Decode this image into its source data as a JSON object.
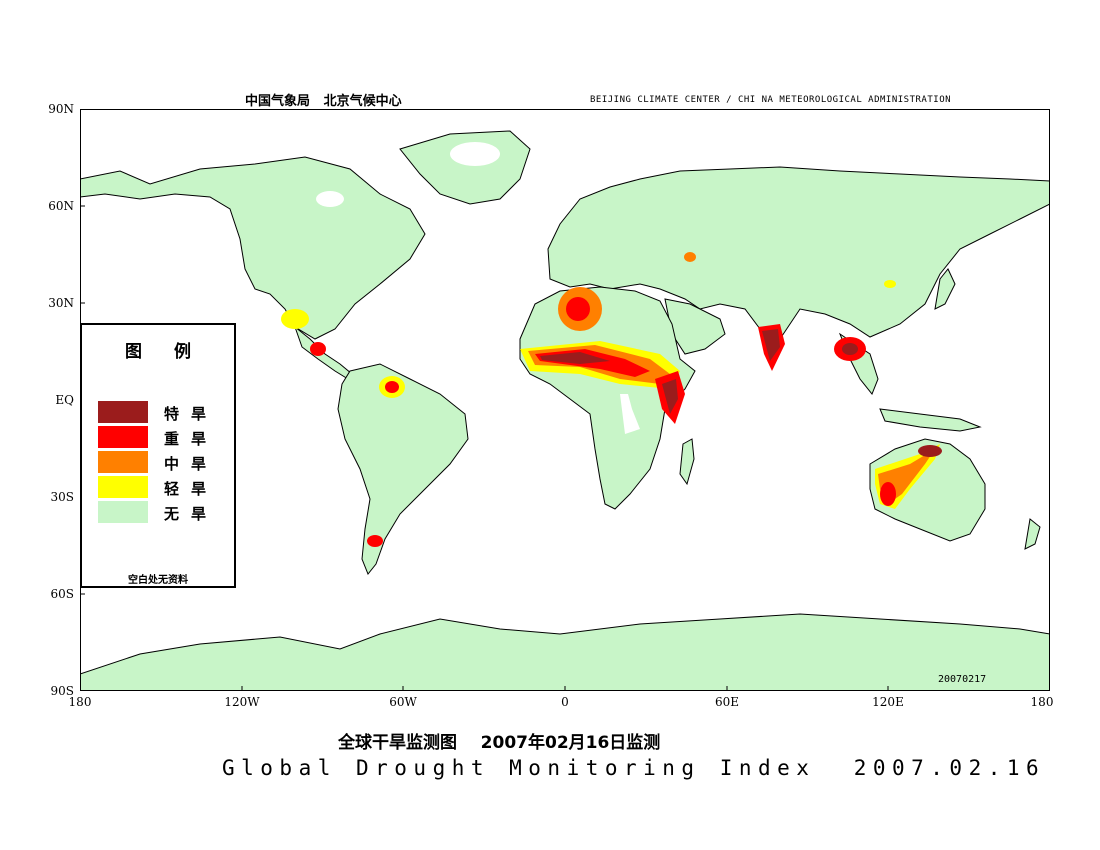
{
  "header": {
    "left": "中国气象局   北京气候中心",
    "right": "BEIJING CLIMATE CENTER / CHI NA METEOROLOGICAL ADMINISTRATION"
  },
  "axes": {
    "lat_labels": [
      "90N",
      "60N",
      "30N",
      "EQ",
      "30S",
      "60S",
      "90S"
    ],
    "lon_labels": [
      "180",
      "120W",
      "60W",
      "0",
      "60E",
      "120E",
      "180"
    ]
  },
  "legend": {
    "title": "图例",
    "items": [
      {
        "label": "特旱",
        "color": "#9b1c1c"
      },
      {
        "label": "重旱",
        "color": "#ff0000"
      },
      {
        "label": "中旱",
        "color": "#ff8000"
      },
      {
        "label": "轻旱",
        "color": "#ffff00"
      },
      {
        "label": "无旱",
        "color": "#c8f5c8"
      }
    ],
    "note": "空白处无资料"
  },
  "stamp": "20070217",
  "title_cn": "全球干旱监测图    2007年02月16日监测",
  "title_en": "Global Drought Monitoring Index  2007.02.16",
  "colors": {
    "land": "#c8f5c8",
    "extreme": "#9b1c1c",
    "severe": "#ff0000",
    "moderate": "#ff8000",
    "light": "#ffff00",
    "nodata": "#ffffff",
    "coast": "#000000"
  }
}
